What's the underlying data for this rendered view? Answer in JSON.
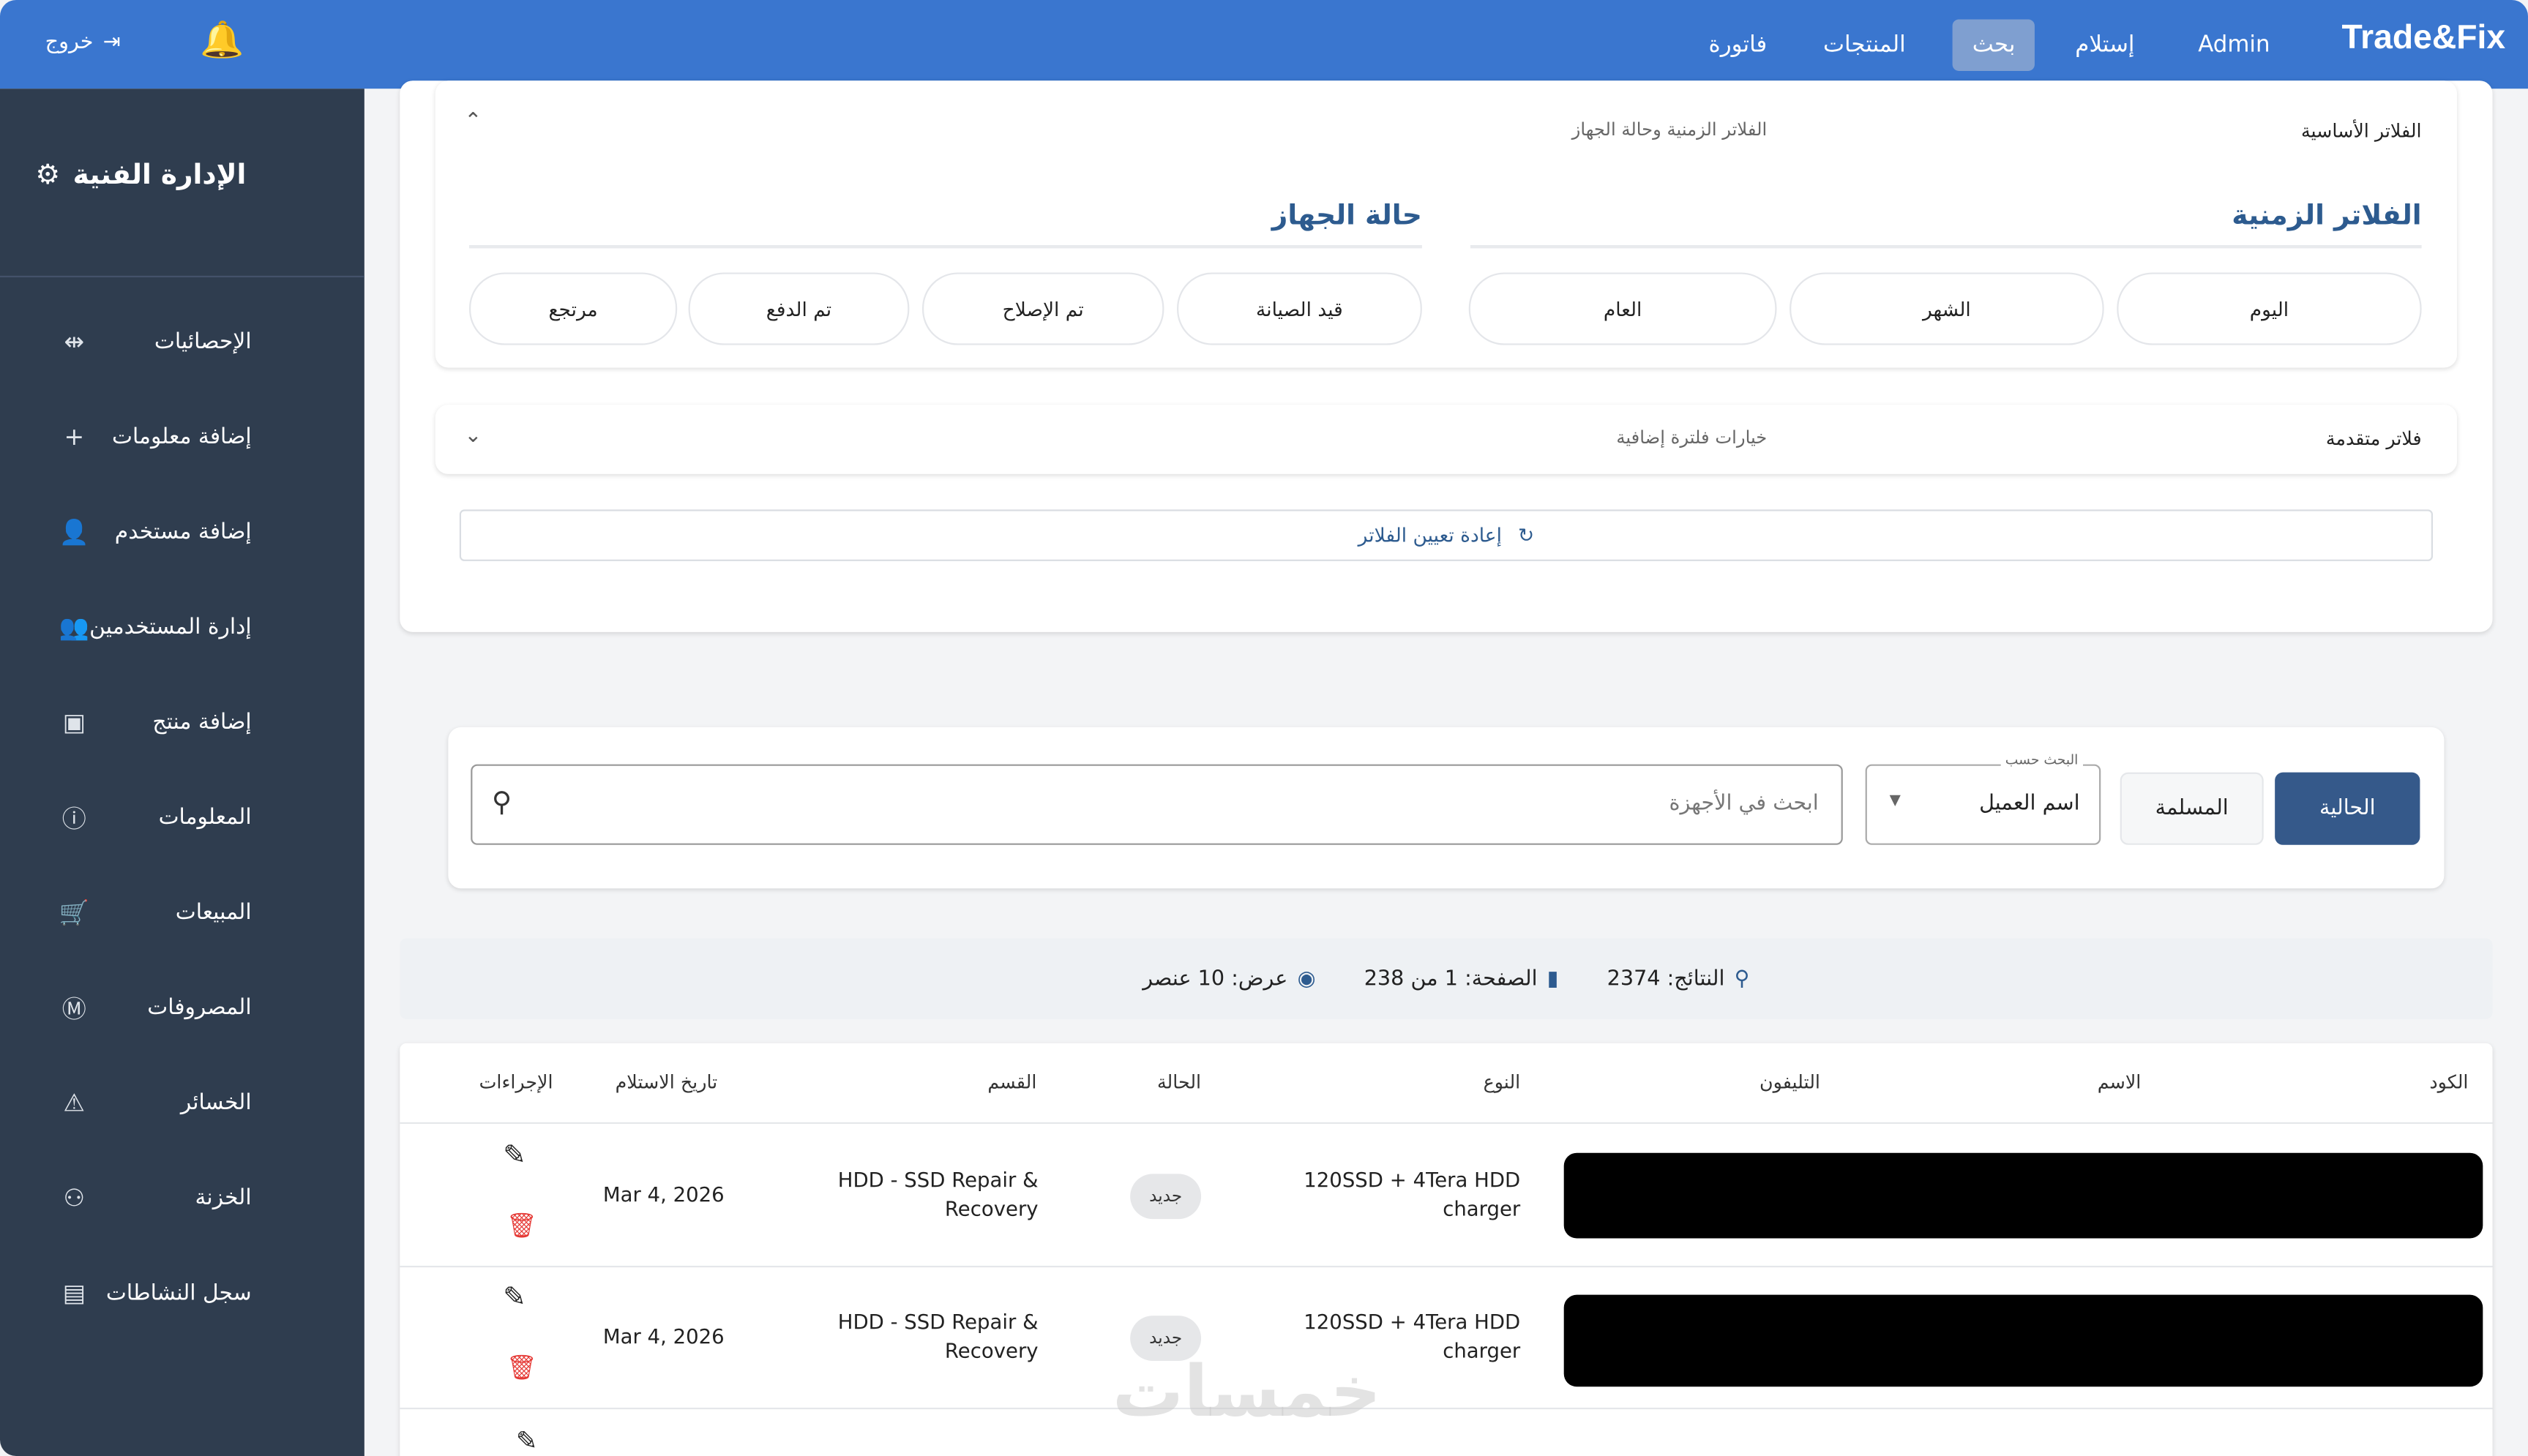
{
  "topbar": {
    "brand": "Trade&Fix",
    "nav": [
      "Admin",
      "إستلام",
      "بحث",
      "المنتجات",
      "فاتورة"
    ],
    "active": "بحث",
    "logout": "خروج",
    "color": "#3a76cf"
  },
  "sidebar": {
    "title": "الإدارة الفنية",
    "items": [
      {
        "label": "الإحصائيات",
        "icon": "stats-icon"
      },
      {
        "label": "إضافة معلومات",
        "icon": "plus-icon"
      },
      {
        "label": "إضافة مستخدم",
        "icon": "add-user-icon"
      },
      {
        "label": "إدارة المستخدمين",
        "icon": "users-icon"
      },
      {
        "label": "إضافة منتج",
        "icon": "box-icon"
      },
      {
        "label": "المعلومات",
        "icon": "info-icon"
      },
      {
        "label": "المبيعات",
        "icon": "cart-icon"
      },
      {
        "label": "المصروفات",
        "icon": "expenses-icon"
      },
      {
        "label": "الخسائر",
        "icon": "warning-icon"
      },
      {
        "label": "الخزنة",
        "icon": "safe-icon"
      },
      {
        "label": "سجل النشاطات",
        "icon": "log-icon"
      }
    ]
  },
  "filters": {
    "basic_title": "الفلاتر الأساسية",
    "basic_subtitle": "الفلاتر الزمنية وحالة الجهاز",
    "time_title": "الفلاتر الزمنية",
    "time_chips": [
      "اليوم",
      "الشهر",
      "العام"
    ],
    "status_title": "حالة الجهاز",
    "status_chips": [
      "قيد الصيانة",
      "تم الإصلاح",
      "تم الدفع",
      "مرتجع"
    ],
    "advanced_title": "فلاتر متقدمة",
    "advanced_subtitle": "خيارات فلترة إضافية",
    "reset": "إعادة تعيين الفلاتر"
  },
  "search": {
    "tab_current": "الحالية",
    "tab_delivered": "المسلمة",
    "search_by_label": "البحث حسب",
    "search_by_value": "اسم العميل",
    "placeholder": "ابحث في الأجهزة"
  },
  "results": {
    "count": "النتائج: 2374",
    "page": "الصفحة: 1 من 238",
    "show": "عرض: 10 عنصر"
  },
  "table": {
    "headers": [
      "الكود",
      "الاسم",
      "التليفون",
      "النوع",
      "الحالة",
      "القسم",
      "تاريخ الاستلام",
      "الإجراءات"
    ],
    "rows": [
      {
        "type": "120SSD + 4Tera HDD charger",
        "status": "جديد",
        "section": "HDD - SSD Repair & Recovery",
        "date": "Mar 4, 2026"
      },
      {
        "type": "120SSD + 4Tera HDD charger",
        "status": "جديد",
        "section": "HDD - SSD Repair & Recovery",
        "date": "Mar 4, 2026"
      }
    ]
  },
  "watermark": "خمسات"
}
